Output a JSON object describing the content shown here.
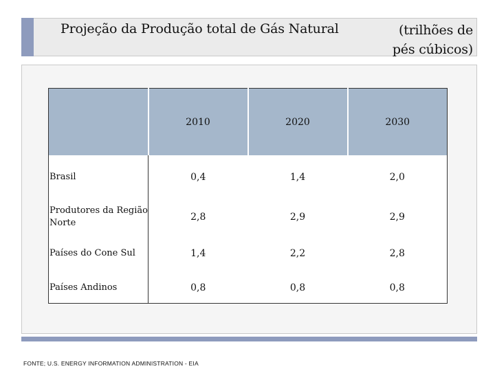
{
  "header": {
    "title": "Projeção da Produção total de Gás Natural",
    "unit": "(trilhões de\npés cúbicos)"
  },
  "colors": {
    "accent": "#8e9bbd",
    "table_header_bg": "#a5b7cb",
    "panel_bg": "#f5f5f5",
    "title_bg": "#ebebeb"
  },
  "table": {
    "columns": [
      "",
      "2010",
      "2020",
      "2030"
    ],
    "rows": [
      {
        "label": "Brasil",
        "values": [
          "0,4",
          "1,4",
          "2,0"
        ]
      },
      {
        "label": "Produtores da Região Norte",
        "values": [
          "2,8",
          "2,9",
          "2,9"
        ]
      },
      {
        "label": "Países do Cone Sul",
        "values": [
          "1,4",
          "2,2",
          "2,8"
        ]
      },
      {
        "label": "Países Andinos",
        "values": [
          "0,8",
          "0,8",
          "0,8"
        ]
      }
    ]
  },
  "footer": {
    "source": "FONTE; U.S. ENERGY INFORMATION ADMINISTRATION - EIA"
  }
}
